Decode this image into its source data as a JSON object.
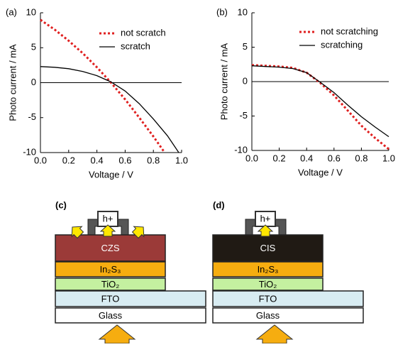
{
  "chart_data": [
    {
      "type": "line",
      "panel_label": "(a)",
      "x_label": "Voltage / V",
      "y_label": "Photo current / mA",
      "xlim": [
        0,
        1
      ],
      "xticks": [
        {
          "value": 0,
          "label": "0.0"
        },
        {
          "value": 0.2,
          "label": "0.2"
        },
        {
          "value": 0.4,
          "label": "0.4"
        },
        {
          "value": 0.6,
          "label": "0.6"
        },
        {
          "value": 0.8,
          "label": "0.8"
        },
        {
          "value": 1,
          "label": "1.0"
        }
      ],
      "ylim": [
        -10,
        10
      ],
      "yticks": [
        -10,
        -5,
        0,
        5,
        10
      ],
      "legend": "upper right",
      "series": [
        {
          "name": "not scratch",
          "color": "#e02020",
          "dash": "dotted",
          "x": [
            0,
            0.1,
            0.2,
            0.3,
            0.4,
            0.5,
            0.6,
            0.7,
            0.8,
            0.88
          ],
          "values": [
            9,
            7.6,
            6.0,
            4.2,
            2.2,
            0.0,
            -2.4,
            -5.0,
            -7.7,
            -10
          ]
        },
        {
          "name": "scratch",
          "color": "#000000",
          "dash": "solid",
          "x": [
            0,
            0.1,
            0.2,
            0.3,
            0.4,
            0.5,
            0.6,
            0.7,
            0.8,
            0.9,
            0.98
          ],
          "values": [
            2.3,
            2.2,
            2.0,
            1.6,
            1.0,
            0.1,
            -1.2,
            -3.0,
            -5.2,
            -7.6,
            -10
          ]
        }
      ]
    },
    {
      "type": "line",
      "panel_label": "(b)",
      "x_label": "Voltage / V",
      "y_label": "Photo current / mA",
      "xlim": [
        0,
        1
      ],
      "xticks": [
        {
          "value": 0,
          "label": "0.0"
        },
        {
          "value": 0.2,
          "label": "0.2"
        },
        {
          "value": 0.4,
          "label": "0.4"
        },
        {
          "value": 0.6,
          "label": "0.6"
        },
        {
          "value": 0.8,
          "label": "0.8"
        },
        {
          "value": 1,
          "label": "1.0"
        }
      ],
      "ylim": [
        -10,
        10
      ],
      "yticks": [
        -10,
        -5,
        0,
        5,
        10
      ],
      "legend": "upper right",
      "series": [
        {
          "name": "not scratching",
          "color": "#e02020",
          "dash": "dotted",
          "x": [
            0,
            0.1,
            0.2,
            0.3,
            0.4,
            0.5,
            0.6,
            0.7,
            0.8,
            0.9,
            1
          ],
          "values": [
            2.4,
            2.3,
            2.2,
            2.0,
            1.3,
            -0.2,
            -2.0,
            -4.2,
            -6.4,
            -8.2,
            -9.8
          ]
        },
        {
          "name": "scratching",
          "color": "#000000",
          "dash": "solid",
          "x": [
            0,
            0.1,
            0.2,
            0.3,
            0.4,
            0.5,
            0.6,
            0.7,
            0.8,
            0.9,
            1
          ],
          "values": [
            2.3,
            2.2,
            2.1,
            1.9,
            1.3,
            -0.1,
            -1.6,
            -3.4,
            -5.1,
            -6.6,
            -8.0
          ]
        }
      ]
    }
  ],
  "diagrams": [
    {
      "label": "(c)",
      "hole": "h+",
      "layers": [
        "CZS",
        "In₂S₃",
        "TiO₂",
        "FTO",
        "Glass"
      ]
    },
    {
      "label": "(d)",
      "hole": "h+",
      "layers": [
        "CIS",
        "In₂S₃",
        "TiO₂",
        "FTO",
        "Glass"
      ]
    }
  ]
}
